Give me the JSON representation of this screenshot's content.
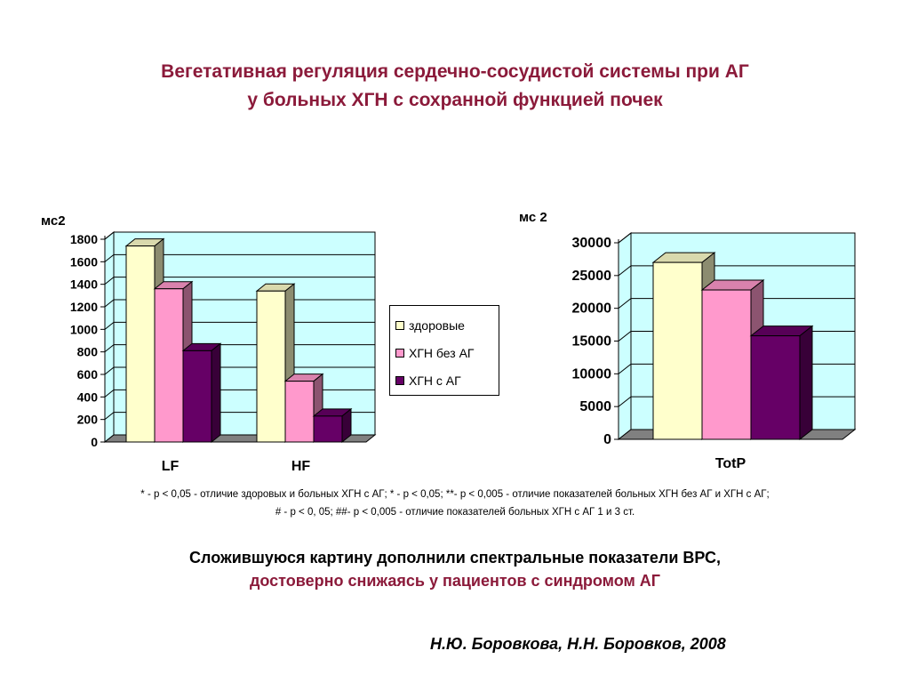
{
  "title": {
    "line1": "Вегетативная регуляция сердечно-сосудистой системы при АГ",
    "line2": "у больных ХГН с сохранной функцией почек"
  },
  "colors": {
    "title": "#8b1a3a",
    "plot_bg": "#ccffff",
    "floor": "#808080"
  },
  "legend": {
    "items": [
      {
        "label": "здоровые",
        "color": "#ffffcc"
      },
      {
        "label": "ХГН без АГ",
        "color": "#ff99cc"
      },
      {
        "label": "ХГН с АГ",
        "color": "#660066"
      }
    ]
  },
  "chart_data": [
    {
      "type": "bar",
      "ylabel": "мс2",
      "categories": [
        "LF",
        "HF"
      ],
      "ylim": [
        0,
        1800
      ],
      "yticks": [
        "0",
        "200",
        "400",
        "600",
        "800",
        "1000",
        "1200",
        "1400",
        "1600",
        "1800"
      ],
      "series": [
        {
          "name": "здоровые",
          "values": [
            1740,
            1340
          ]
        },
        {
          "name": "ХГН без АГ",
          "values": [
            1360,
            540
          ]
        },
        {
          "name": "ХГН с АГ",
          "values": [
            810,
            230
          ]
        }
      ],
      "grid": true,
      "legend": "right"
    },
    {
      "type": "bar",
      "ylabel": "мс 2",
      "categories": [
        "TotP"
      ],
      "ylim": [
        0,
        30000
      ],
      "yticks": [
        "0",
        "5000",
        "10000",
        "15000",
        "20000",
        "25000",
        "30000"
      ],
      "series": [
        {
          "name": "здоровые",
          "values": [
            27000
          ]
        },
        {
          "name": "ХГН без АГ",
          "values": [
            22800
          ]
        },
        {
          "name": "ХГН с АГ",
          "values": [
            15800
          ]
        }
      ],
      "grid": true,
      "legend": "none"
    }
  ],
  "footnote": {
    "line1": "* - р < 0,05 - отличие здоровых и больных ХГН с АГ;  * - р < 0,05; **- р < 0,005 - отличие показателей больных ХГН без АГ и ХГН с АГ;",
    "line2": "# - р < 0, 05; ##- р < 0,005 - отличие показателей больных ХГН с АГ 1 и 3 ст."
  },
  "conclusion": {
    "line1": "Сложившуюся картину дополнили спектральные показатели ВРС,",
    "line2": "достоверно снижаясь у пациентов с синдромом АГ"
  },
  "author": "Н.Ю. Боровкова, Н.Н. Боровков, 2008"
}
